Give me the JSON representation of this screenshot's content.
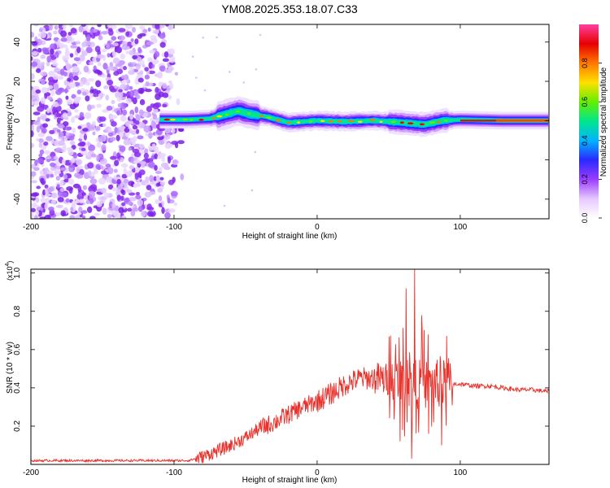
{
  "page_title": "YM08.2025.353.18.07.C33",
  "chart_data": [
    {
      "type": "heatmap",
      "title": "YM08.2025.353.18.07.C33",
      "xlabel": "Height of straight line (km)",
      "ylabel": "Frequency (Hz)",
      "xlim": [
        -200,
        162
      ],
      "ylim": [
        -50,
        49
      ],
      "xticks": [
        -200,
        -100,
        0,
        100
      ],
      "yticks": [
        -40,
        -20,
        0,
        20,
        40
      ],
      "colorbar": {
        "label": "Normalized spectral amplitude",
        "range": [
          0,
          1
        ],
        "ticks": [
          "0.0",
          "0.2",
          "0.4",
          "0.6",
          "0.8"
        ],
        "colors": [
          "#ffffff",
          "#e6c8ff",
          "#9a3cff",
          "#2a2aff",
          "#00b4ff",
          "#00e68c",
          "#66ee00",
          "#ffe000",
          "#ff7800",
          "#e60000",
          "#ff40a0"
        ]
      },
      "features": {
        "noise_region_x": [
          -200,
          -95
        ],
        "noise_freq_range": [
          -50,
          49
        ],
        "ridge_x": [
          -110,
          162
        ],
        "ridge_freq_hz": 0,
        "ridge_points": [
          {
            "x": -110,
            "f": 0.5
          },
          {
            "x": -90,
            "f": 0.5
          },
          {
            "x": -75,
            "f": 1
          },
          {
            "x": -65,
            "f": 3
          },
          {
            "x": -55,
            "f": 5
          },
          {
            "x": -48,
            "f": 3.5
          },
          {
            "x": -35,
            "f": 2
          },
          {
            "x": -20,
            "f": -1
          },
          {
            "x": 0,
            "f": 0
          },
          {
            "x": 20,
            "f": -0.5
          },
          {
            "x": 40,
            "f": 0
          },
          {
            "x": 60,
            "f": -1
          },
          {
            "x": 75,
            "f": -2
          },
          {
            "x": 88,
            "f": 0
          },
          {
            "x": 100,
            "f": 0.5
          },
          {
            "x": 130,
            "f": 0
          },
          {
            "x": 162,
            "f": 0
          }
        ]
      }
    },
    {
      "type": "line",
      "xlabel": "Height of straight line (km)",
      "ylabel": "SNR (10 * v/v)",
      "y_multiplier": "(x10",
      "y_multiplier_exp": "4",
      "xlim": [
        -200,
        162
      ],
      "ylim": [
        0,
        1.02
      ],
      "xticks": [
        -200,
        -100,
        0,
        100
      ],
      "yticks": [
        0.2,
        0.4,
        0.6,
        0.8,
        1.0
      ],
      "color": "#e8302a",
      "series": [
        {
          "name": "SNR",
          "x": [
            -200,
            -180,
            -160,
            -140,
            -120,
            -100,
            -90,
            -80,
            -70,
            -60,
            -50,
            -40,
            -30,
            -20,
            -10,
            0,
            10,
            20,
            30,
            40,
            50,
            55,
            60,
            65,
            70,
            75,
            80,
            85,
            90,
            95,
            100,
            110,
            120,
            130,
            140,
            150,
            162
          ],
          "baseline": [
            0.02,
            0.02,
            0.02,
            0.02,
            0.02,
            0.02,
            0.02,
            0.04,
            0.07,
            0.1,
            0.14,
            0.19,
            0.22,
            0.26,
            0.3,
            0.33,
            0.37,
            0.42,
            0.45,
            0.45,
            0.44,
            0.43,
            0.43,
            0.42,
            0.42,
            0.42,
            0.42,
            0.42,
            0.42,
            0.42,
            0.42,
            0.41,
            0.41,
            0.4,
            0.39,
            0.39,
            0.38
          ],
          "peaks": [
            {
              "x": 62,
              "y": 0.92
            },
            {
              "x": 68,
              "y": 1.02
            },
            {
              "x": 73,
              "y": 0.78
            },
            {
              "x": 66,
              "y": 0.03
            },
            {
              "x": 78,
              "y": 0.16
            },
            {
              "x": 87,
              "y": 0.1
            }
          ]
        }
      ]
    }
  ]
}
